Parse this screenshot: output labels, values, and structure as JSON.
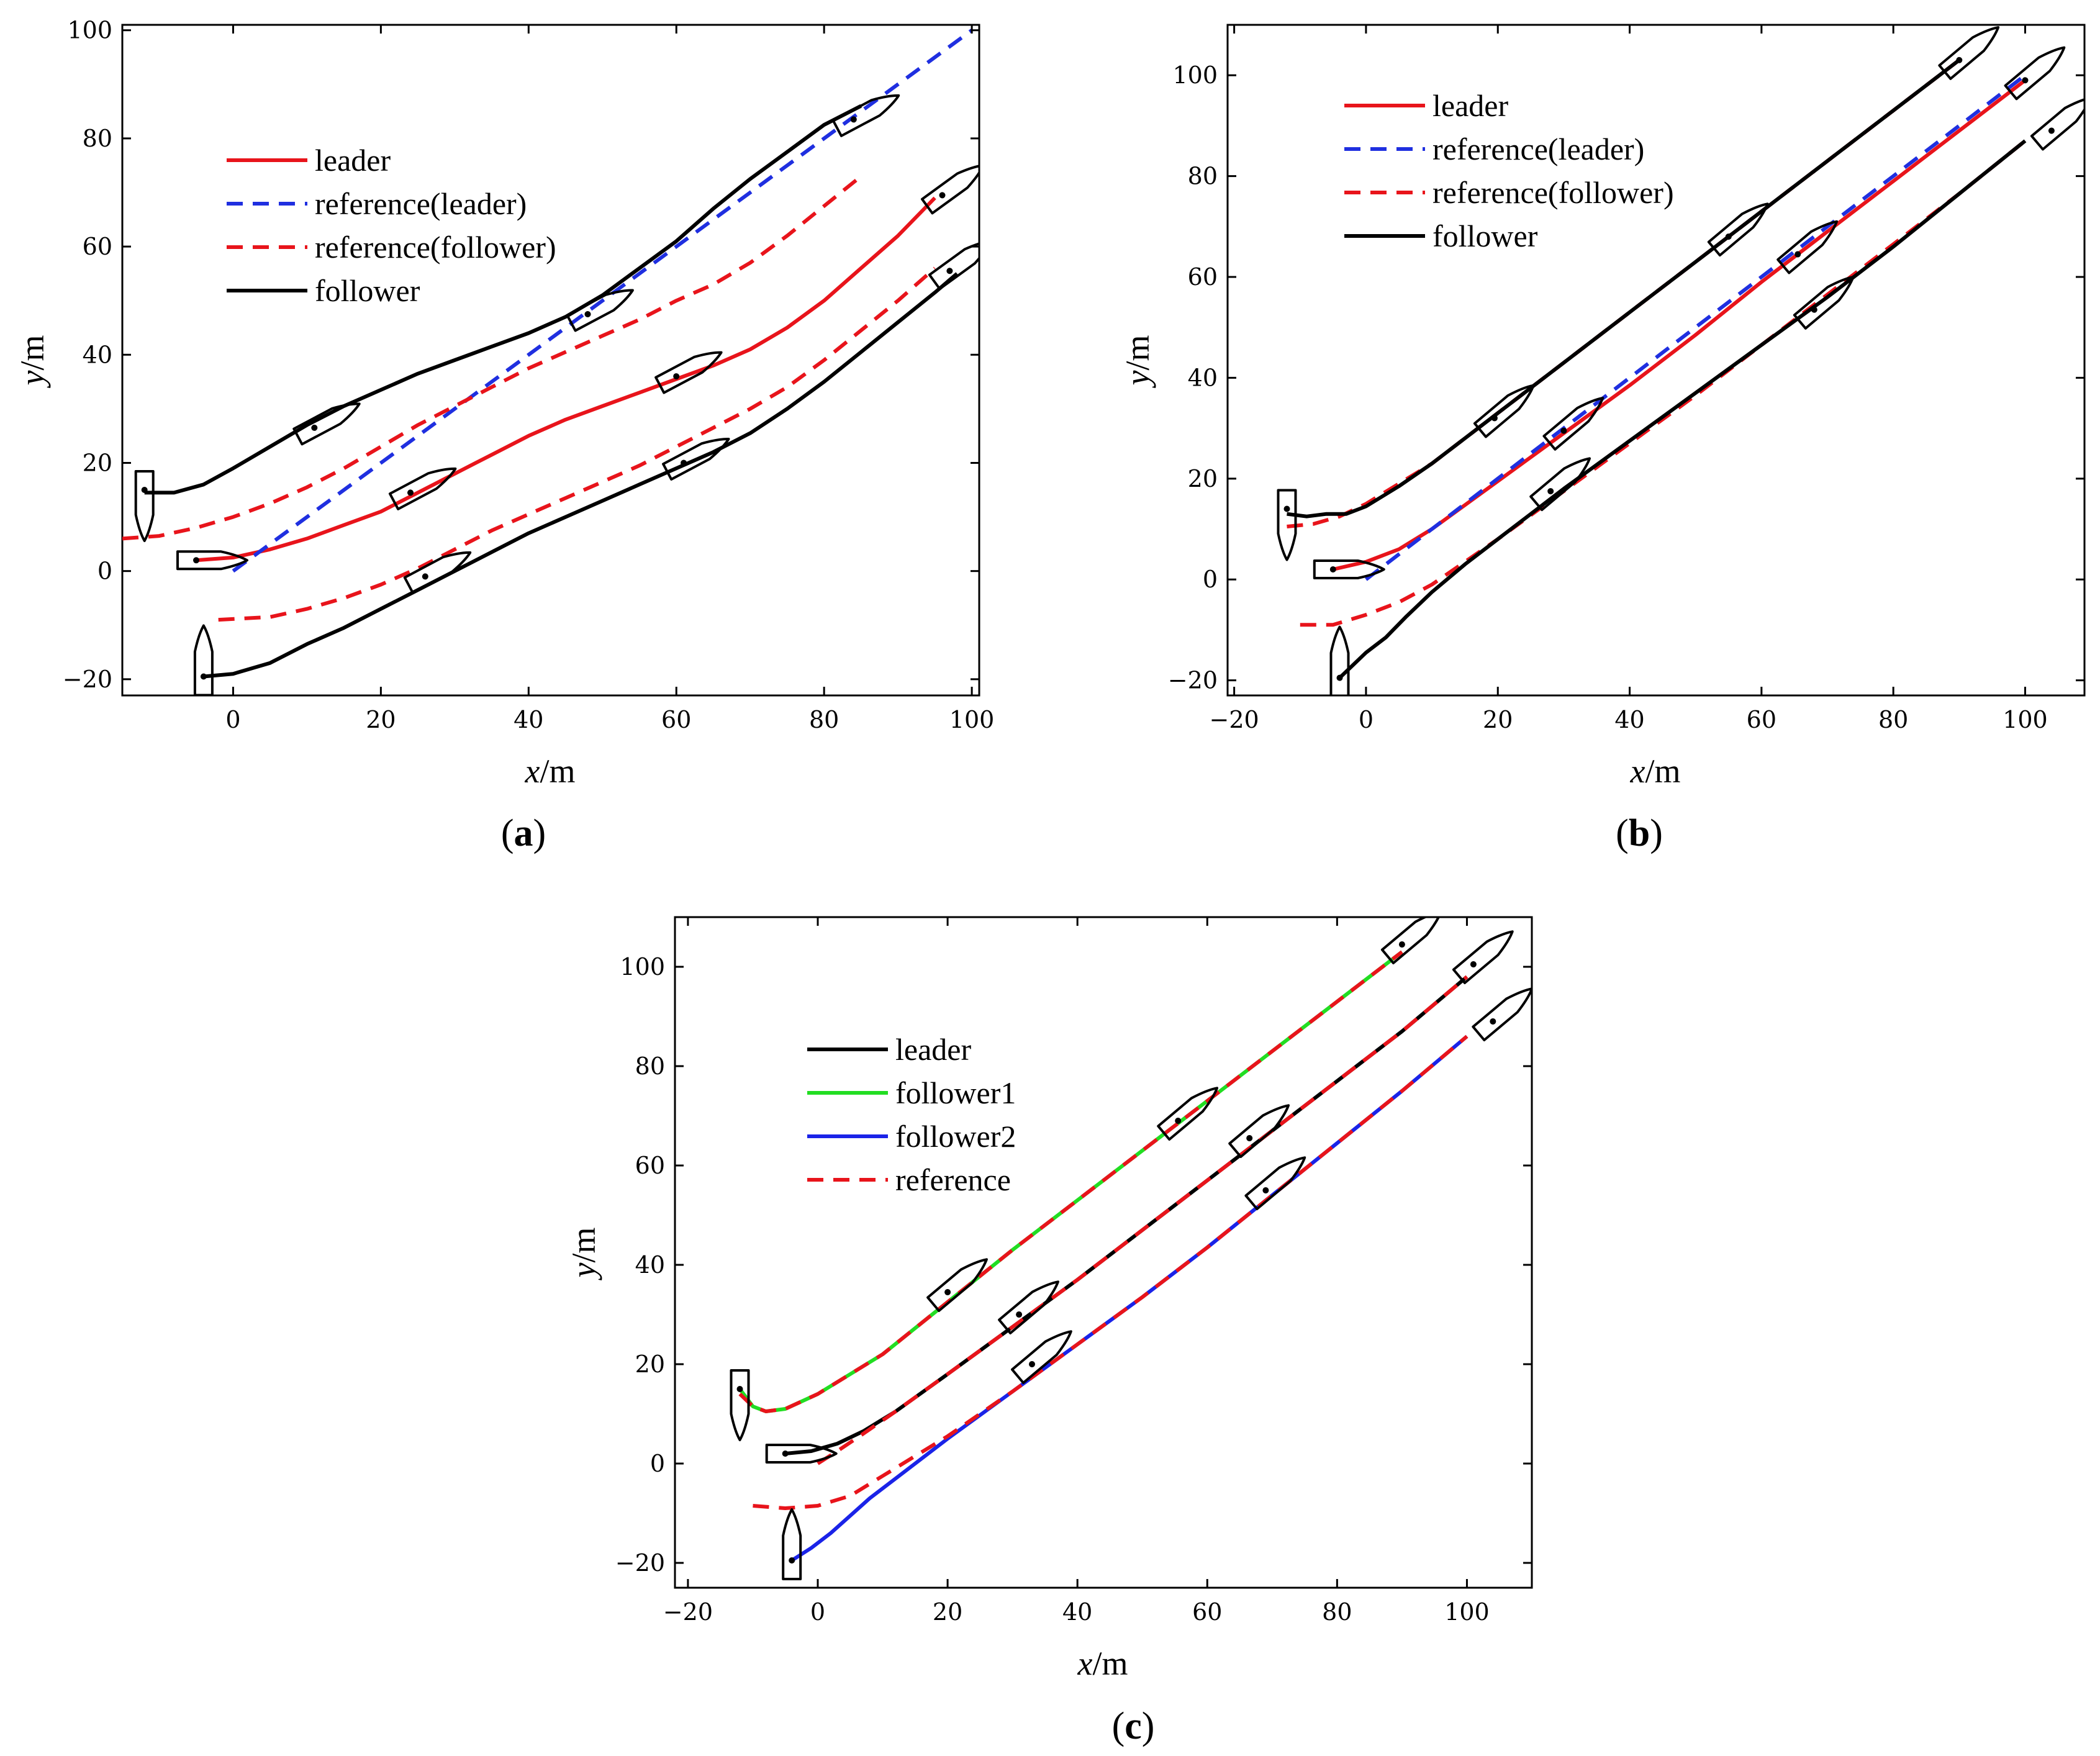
{
  "chart_data": [
    {
      "type": "line",
      "panel": "a",
      "caption_letter": "a",
      "xlabel_var": "x",
      "xlabel_unit": "/m",
      "ylabel_var": "y",
      "ylabel_unit": "/m",
      "xlim": [
        -15,
        101
      ],
      "ylim": [
        -23,
        101
      ],
      "xticks": [
        0,
        20,
        40,
        60,
        80,
        100
      ],
      "yticks": [
        -20,
        0,
        20,
        40,
        60,
        80,
        100
      ],
      "legend_position": "top-left",
      "series": [
        {
          "name": "leader",
          "color": "#e8141b",
          "style": "solid",
          "in_legend": true,
          "x": [
            -5,
            0,
            5,
            10,
            15,
            20,
            25,
            30,
            35,
            40,
            45,
            50,
            55,
            60,
            65,
            70,
            75,
            80,
            85,
            90,
            95
          ],
          "y": [
            2,
            2.5,
            4,
            6,
            8.5,
            11,
            14.5,
            18,
            21.5,
            25,
            28,
            30.5,
            33,
            35.5,
            38,
            41,
            45,
            50,
            56,
            62,
            69
          ]
        },
        {
          "name": "reference(leader)",
          "color": "#1f2fe0",
          "style": "dashed",
          "in_legend": true,
          "x": [
            0,
            20,
            40,
            60,
            80,
            100
          ],
          "y": [
            0,
            20,
            40,
            60,
            80,
            100
          ]
        },
        {
          "name": "reference(follower)",
          "color": "#e8141b",
          "style": "dashed",
          "in_legend": true,
          "x": [
            -15,
            -10,
            -5,
            0,
            5,
            10,
            15,
            20,
            25,
            30,
            35,
            40,
            45,
            50,
            55,
            60,
            65,
            70,
            75,
            80,
            85
          ],
          "y": [
            6,
            6.5,
            8,
            10,
            12.5,
            15.5,
            19,
            23,
            27,
            30.5,
            34,
            37.5,
            40.5,
            43.5,
            46.5,
            50,
            53,
            57,
            62,
            67.5,
            73
          ]
        },
        {
          "name": "reference(follower)",
          "color": "#e8141b",
          "style": "dashed",
          "in_legend": false,
          "x": [
            -2,
            5,
            10,
            15,
            20,
            25,
            30,
            35,
            40,
            45,
            50,
            55,
            60,
            65,
            70,
            75,
            80,
            85,
            90,
            95
          ],
          "y": [
            -9,
            -8.5,
            -7,
            -5,
            -2.5,
            0.5,
            4,
            7.5,
            10.5,
            13.5,
            16.5,
            19.5,
            23,
            26.5,
            30,
            34,
            39,
            44.5,
            50,
            56
          ]
        },
        {
          "name": "follower",
          "color": "#000000",
          "style": "solid",
          "in_legend": true,
          "x": [
            -12,
            -8,
            -4,
            0,
            5,
            10,
            15,
            20,
            25,
            30,
            35,
            40,
            45,
            50,
            55,
            60,
            65,
            70,
            75,
            80,
            85
          ],
          "y": [
            14.5,
            14.5,
            16,
            19,
            23,
            27,
            30.5,
            33.5,
            36.5,
            39,
            41.5,
            44,
            47,
            51,
            56,
            61,
            67,
            72.5,
            77.5,
            82.5,
            86
          ]
        },
        {
          "name": "follower",
          "color": "#000000",
          "style": "solid",
          "in_legend": false,
          "x": [
            -4,
            0,
            5,
            10,
            15,
            20,
            25,
            30,
            35,
            40,
            45,
            50,
            55,
            60,
            65,
            70,
            75,
            80,
            85,
            90,
            95,
            98
          ],
          "y": [
            -19.5,
            -19,
            -17,
            -13.5,
            -10.5,
            -7,
            -3.5,
            0,
            3.5,
            7,
            10,
            13,
            16,
            19,
            22,
            25.5,
            30,
            35,
            40.5,
            46,
            51.5,
            55
          ]
        }
      ],
      "vessels": [
        {
          "x": -12,
          "y": 15,
          "heading": 270
        },
        {
          "x": -5,
          "y": 2,
          "heading": 0
        },
        {
          "x": -4,
          "y": -19.5,
          "heading": 90
        },
        {
          "x": 11,
          "y": 26.5,
          "heading": 28
        },
        {
          "x": 24,
          "y": 14.5,
          "heading": 28
        },
        {
          "x": 26,
          "y": -1,
          "heading": 28
        },
        {
          "x": 48,
          "y": 47.5,
          "heading": 28
        },
        {
          "x": 60,
          "y": 36,
          "heading": 28
        },
        {
          "x": 61,
          "y": 20,
          "heading": 28
        },
        {
          "x": 84,
          "y": 83.5,
          "heading": 28
        },
        {
          "x": 96,
          "y": 69.5,
          "heading": 36
        },
        {
          "x": 97,
          "y": 55.5,
          "heading": 36
        }
      ]
    },
    {
      "type": "line",
      "panel": "b",
      "caption_letter": "b",
      "xlabel_var": "x",
      "xlabel_unit": "/m",
      "ylabel_var": "y",
      "ylabel_unit": "/m",
      "xlim": [
        -21,
        109
      ],
      "ylim": [
        -23,
        110
      ],
      "xticks": [
        -20,
        0,
        20,
        40,
        60,
        80,
        100
      ],
      "yticks": [
        -20,
        0,
        20,
        40,
        60,
        80,
        100
      ],
      "legend_position": "top-left",
      "series": [
        {
          "name": "leader",
          "color": "#e8141b",
          "style": "solid",
          "in_legend": true,
          "x": [
            -5,
            0,
            5,
            10,
            20,
            30,
            40,
            50,
            60,
            70,
            80,
            90,
            100
          ],
          "y": [
            2,
            3.5,
            6,
            10,
            19.5,
            29,
            38.5,
            48.5,
            59,
            69,
            79,
            89,
            99
          ]
        },
        {
          "name": "reference(leader)",
          "color": "#1f2fe0",
          "style": "dashed",
          "in_legend": true,
          "x": [
            0,
            20,
            40,
            60,
            80,
            100
          ],
          "y": [
            0,
            20,
            40,
            60,
            80,
            100
          ]
        },
        {
          "name": "reference(follower)",
          "color": "#e8141b",
          "style": "dashed",
          "in_legend": true,
          "x": [
            -12,
            -8,
            -4,
            0,
            5,
            10,
            20,
            30,
            40,
            50,
            60,
            70,
            80,
            90
          ],
          "y": [
            10.5,
            11,
            12.5,
            15,
            19,
            23,
            33,
            43,
            53,
            63,
            73,
            83,
            93,
            103
          ]
        },
        {
          "name": "reference(follower)",
          "color": "#e8141b",
          "style": "dashed",
          "in_legend": false,
          "x": [
            -10,
            -5,
            0,
            5,
            10,
            20,
            30,
            40,
            50,
            60,
            70,
            80,
            90,
            100
          ],
          "y": [
            -9,
            -9,
            -7,
            -4.5,
            -1,
            8,
            17.5,
            27,
            36.5,
            46.5,
            56.5,
            66.5,
            76.5,
            87
          ]
        },
        {
          "name": "follower",
          "color": "#000000",
          "style": "solid",
          "in_legend": true,
          "x": [
            -12,
            -9,
            -6,
            -3,
            0,
            5,
            10,
            20,
            30,
            40,
            50,
            60,
            70,
            80,
            90
          ],
          "y": [
            13,
            12.5,
            13,
            13,
            14.5,
            18.5,
            23,
            33,
            43,
            53,
            63,
            73,
            83,
            93,
            103
          ]
        },
        {
          "name": "follower",
          "color": "#000000",
          "style": "solid",
          "in_legend": false,
          "x": [
            -4,
            -2,
            0,
            3,
            6,
            10,
            15,
            20,
            25,
            30,
            40,
            50,
            60,
            70,
            80,
            90,
            100
          ],
          "y": [
            -19.5,
            -17,
            -14.5,
            -11.5,
            -7.5,
            -2.5,
            3,
            8,
            13,
            18,
            27.5,
            37,
            46.5,
            56,
            66,
            76.5,
            87
          ]
        }
      ],
      "vessels": [
        {
          "x": -12,
          "y": 14,
          "heading": 270
        },
        {
          "x": -5,
          "y": 2,
          "heading": 0
        },
        {
          "x": -4,
          "y": -19.5,
          "heading": 90
        },
        {
          "x": 19.5,
          "y": 32,
          "heading": 40
        },
        {
          "x": 30,
          "y": 29.5,
          "heading": 40
        },
        {
          "x": 28,
          "y": 17.5,
          "heading": 40
        },
        {
          "x": 55,
          "y": 68,
          "heading": 40
        },
        {
          "x": 65.5,
          "y": 64.5,
          "heading": 40
        },
        {
          "x": 68,
          "y": 53.5,
          "heading": 40
        },
        {
          "x": 90,
          "y": 103,
          "heading": 40
        },
        {
          "x": 100,
          "y": 99,
          "heading": 40
        },
        {
          "x": 104,
          "y": 89,
          "heading": 40
        }
      ]
    },
    {
      "type": "line",
      "panel": "c",
      "caption_letter": "c",
      "xlabel_var": "x",
      "xlabel_unit": "/m",
      "ylabel_var": "y",
      "ylabel_unit": "/m",
      "xlim": [
        -22,
        110
      ],
      "ylim": [
        -25,
        110
      ],
      "xticks": [
        -20,
        0,
        20,
        40,
        60,
        80,
        100
      ],
      "yticks": [
        -20,
        0,
        20,
        40,
        60,
        80,
        100
      ],
      "legend_position": "top-left",
      "series": [
        {
          "name": "leader",
          "color": "#000000",
          "style": "solid",
          "in_legend": true,
          "x": [
            -5,
            -1,
            3,
            7,
            12,
            20,
            30,
            40,
            50,
            60,
            70,
            80,
            90,
            100
          ],
          "y": [
            2,
            2.5,
            4,
            6.5,
            10.5,
            18,
            27.5,
            37,
            47,
            57,
            67,
            77,
            87,
            98
          ]
        },
        {
          "name": "follower1",
          "color": "#22dd22",
          "style": "solid",
          "in_legend": true,
          "x": [
            -12,
            -10,
            -8,
            -5,
            0,
            5,
            10,
            20,
            30,
            40,
            50,
            60,
            70,
            80,
            90
          ],
          "y": [
            15,
            11.5,
            10.5,
            11,
            14,
            18,
            22,
            32.5,
            43,
            53,
            63,
            73,
            83,
            93,
            103
          ]
        },
        {
          "name": "follower2",
          "color": "#1a23e8",
          "style": "solid",
          "in_legend": true,
          "x": [
            -4,
            -1,
            2,
            5,
            8,
            12,
            20,
            30,
            40,
            50,
            60,
            70,
            80,
            90,
            100
          ],
          "y": [
            -19.5,
            -17,
            -14,
            -10.5,
            -7,
            -3,
            5,
            14.5,
            24,
            33.5,
            43.5,
            54,
            64.5,
            75,
            86
          ]
        },
        {
          "name": "reference",
          "color": "#e8141b",
          "style": "dashed",
          "in_legend": true,
          "x": [
            -12,
            -10,
            -8,
            -5,
            0,
            5,
            10,
            20,
            30,
            40,
            50,
            60,
            70,
            80,
            90
          ],
          "y": [
            14,
            11.5,
            10.5,
            11,
            14,
            18,
            22,
            32.5,
            43,
            53,
            63,
            73,
            83,
            93,
            103
          ]
        },
        {
          "name": "reference",
          "color": "#e8141b",
          "style": "dashed",
          "in_legend": false,
          "x": [
            0,
            3,
            7,
            12,
            20,
            30,
            40,
            50,
            60,
            70,
            80,
            90,
            100
          ],
          "y": [
            0,
            2.5,
            6,
            10.5,
            18,
            27.5,
            37,
            47,
            57,
            67,
            77,
            87,
            98
          ]
        },
        {
          "name": "reference",
          "color": "#e8141b",
          "style": "dashed",
          "in_legend": false,
          "x": [
            -10,
            -5,
            0,
            5,
            10,
            15,
            20,
            30,
            40,
            50,
            60,
            70,
            80,
            90,
            100
          ],
          "y": [
            -8.5,
            -9,
            -8.5,
            -6.5,
            -2.5,
            1.5,
            5.5,
            14.5,
            24,
            33.5,
            43.5,
            54,
            64.5,
            75,
            86
          ]
        }
      ],
      "vessels": [
        {
          "x": -12,
          "y": 15,
          "heading": 270
        },
        {
          "x": -5,
          "y": 2,
          "heading": 0
        },
        {
          "x": -4,
          "y": -19.5,
          "heading": 90
        },
        {
          "x": 20,
          "y": 34.5,
          "heading": 40
        },
        {
          "x": 31,
          "y": 30,
          "heading": 40
        },
        {
          "x": 33,
          "y": 20,
          "heading": 40
        },
        {
          "x": 55.5,
          "y": 69,
          "heading": 40
        },
        {
          "x": 66.5,
          "y": 65.5,
          "heading": 40
        },
        {
          "x": 69,
          "y": 55,
          "heading": 40
        },
        {
          "x": 90,
          "y": 104.5,
          "heading": 40
        },
        {
          "x": 101,
          "y": 100.5,
          "heading": 40
        },
        {
          "x": 104,
          "y": 89,
          "heading": 40
        }
      ]
    }
  ]
}
